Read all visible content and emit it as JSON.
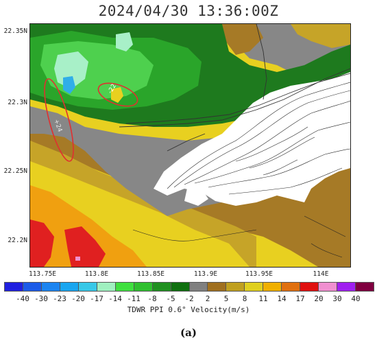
{
  "title": "2024/04/30 13:36:00Z",
  "axes": {
    "y_ticks": [
      "22.35N",
      "22.3N",
      "22.25N",
      "22.2N"
    ],
    "x_ticks": [
      "113.75E",
      "113.8E",
      "113.85E",
      "113.9E",
      "113.95E",
      "114E"
    ]
  },
  "colorbar": {
    "caption": "TDWR PPI 0.6° Velocity(m/s)",
    "labels": [
      "-40",
      "-30",
      "-23",
      "-20",
      "-17",
      "-14",
      "-11",
      "-8",
      "-5",
      "-2",
      "2",
      "5",
      "8",
      "11",
      "14",
      "17",
      "20",
      "30",
      "40"
    ],
    "colors": [
      "#2020e0",
      "#1c5be8",
      "#1c84f0",
      "#1aa6f0",
      "#38c8e8",
      "#a0f0c0",
      "#40e040",
      "#30c030",
      "#209020",
      "#107010",
      "#808080",
      "#a07020",
      "#c0a020",
      "#e0d020",
      "#f0b000",
      "#e07010",
      "#e01010",
      "#f090d0",
      "#a020f0",
      "#800040"
    ]
  },
  "annotations": {
    "ellipse_labels": [
      "+24",
      "-22"
    ]
  },
  "panel_label": "(a)",
  "palette": {
    "gray": "#878787",
    "green_dark": "#1e7a1e",
    "green_mid": "#2aa52a",
    "green_light": "#4ed04e",
    "mint": "#a8f0c8",
    "cyan": "#30aee8",
    "brown": "#a67a26",
    "olive": "#c6a428",
    "yellow": "#e8d020",
    "orange": "#f0a010",
    "red": "#e02020",
    "pink": "#f090d0",
    "terrain_line": "#222222",
    "ellipse": "#e03030"
  }
}
